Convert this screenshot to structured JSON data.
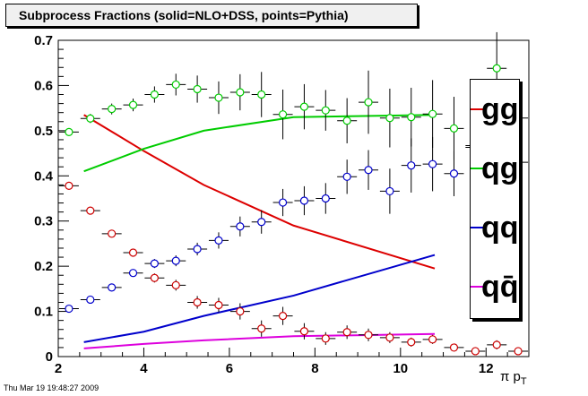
{
  "title": "Subprocess Fractions (solid=NLO+DSS, points=Pythia)",
  "footer": "Thu Mar 19 19:48:27 2009",
  "chart_data": {
    "type": "line",
    "xlabel": "π p_T",
    "ylabel": "",
    "xlim": [
      2,
      13
    ],
    "ylim": [
      0,
      0.7
    ],
    "x_ticks": [
      2,
      4,
      6,
      8,
      10,
      12
    ],
    "y_ticks": [
      0,
      0.1,
      0.2,
      0.3,
      0.4,
      0.5,
      0.6,
      0.7
    ],
    "legend_placement": "right",
    "legend": [
      {
        "label": "gg",
        "color": "#dd0000"
      },
      {
        "label": "qg",
        "color": "#00cc00"
      },
      {
        "label": "qq",
        "color": "#0000cc"
      },
      {
        "label": "qq̄",
        "color": "#dd00dd"
      }
    ],
    "curves": [
      {
        "name": "gg",
        "color": "#dd0000",
        "x": [
          2.6,
          4.0,
          5.4,
          7.5,
          10.8
        ],
        "y": [
          0.535,
          0.455,
          0.38,
          0.29,
          0.195
        ]
      },
      {
        "name": "qg",
        "color": "#00cc00",
        "x": [
          2.6,
          4.0,
          5.4,
          7.5,
          10.8
        ],
        "y": [
          0.41,
          0.46,
          0.5,
          0.53,
          0.535
        ]
      },
      {
        "name": "qq",
        "color": "#0000cc",
        "x": [
          2.6,
          4.0,
          5.4,
          7.5,
          10.8
        ],
        "y": [
          0.032,
          0.055,
          0.09,
          0.135,
          0.225
        ]
      },
      {
        "name": "qq̄",
        "color": "#dd00dd",
        "x": [
          2.6,
          4.0,
          5.4,
          7.5,
          10.8
        ],
        "y": [
          0.018,
          0.028,
          0.036,
          0.045,
          0.05
        ]
      }
    ],
    "points": [
      {
        "name": "gg",
        "color": "#cc0000",
        "x": [
          2.25,
          2.75,
          3.25,
          3.75,
          4.25,
          4.75,
          5.25,
          5.75,
          6.25,
          6.75,
          7.25,
          7.75,
          8.25,
          8.75,
          9.25,
          9.75,
          10.25,
          10.75,
          11.25,
          11.75,
          12.25,
          12.75
        ],
        "y": [
          0.378,
          0.323,
          0.272,
          0.23,
          0.174,
          0.158,
          0.12,
          0.114,
          0.1,
          0.062,
          0.09,
          0.056,
          0.04,
          0.054,
          0.048,
          0.042,
          0.032,
          0.038,
          0.02,
          0.012,
          0.026,
          0.012
        ],
        "yerr": [
          0.006,
          0.006,
          0.007,
          0.008,
          0.01,
          0.012,
          0.014,
          0.016,
          0.018,
          0.018,
          0.02,
          0.018,
          0.014,
          0.015,
          0.014,
          0.012,
          0.01,
          0.01,
          0.008,
          0.006,
          0.01,
          0.006
        ]
      },
      {
        "name": "qg",
        "color": "#00cc00",
        "x": [
          2.25,
          2.75,
          3.25,
          3.75,
          4.25,
          4.75,
          5.25,
          5.75,
          6.25,
          6.75,
          7.25,
          7.75,
          8.25,
          8.75,
          9.25,
          9.75,
          10.25,
          10.75,
          11.25,
          11.75,
          12.25,
          12.75
        ],
        "y": [
          0.497,
          0.527,
          0.548,
          0.557,
          0.58,
          0.602,
          0.592,
          0.573,
          0.585,
          0.58,
          0.536,
          0.553,
          0.545,
          0.522,
          0.563,
          0.528,
          0.53,
          0.537,
          0.505,
          0.467,
          0.638,
          0.528
        ],
        "yerr": [
          0.008,
          0.01,
          0.012,
          0.014,
          0.018,
          0.024,
          0.03,
          0.036,
          0.04,
          0.05,
          0.055,
          0.05,
          0.045,
          0.05,
          0.07,
          0.065,
          0.065,
          0.075,
          0.07,
          0.1,
          0.08,
          0.07
        ]
      },
      {
        "name": "qq",
        "color": "#0000cc",
        "x": [
          2.25,
          2.75,
          3.25,
          3.75,
          4.25,
          4.75,
          5.25,
          5.75,
          6.25,
          6.75,
          7.25,
          7.75,
          8.25,
          8.75,
          9.25,
          9.75,
          10.25,
          10.75,
          11.25,
          11.75,
          12.25,
          12.75
        ],
        "y": [
          0.106,
          0.126,
          0.153,
          0.185,
          0.206,
          0.212,
          0.238,
          0.257,
          0.288,
          0.298,
          0.341,
          0.345,
          0.35,
          0.398,
          0.413,
          0.366,
          0.423,
          0.426,
          0.405,
          0.463,
          0.435,
          0.43
        ],
        "yerr": [
          0.004,
          0.005,
          0.006,
          0.007,
          0.01,
          0.012,
          0.014,
          0.018,
          0.022,
          0.026,
          0.03,
          0.032,
          0.034,
          0.038,
          0.044,
          0.05,
          0.06,
          0.06,
          0.05,
          0.075,
          0.065,
          0.07
        ]
      }
    ]
  }
}
